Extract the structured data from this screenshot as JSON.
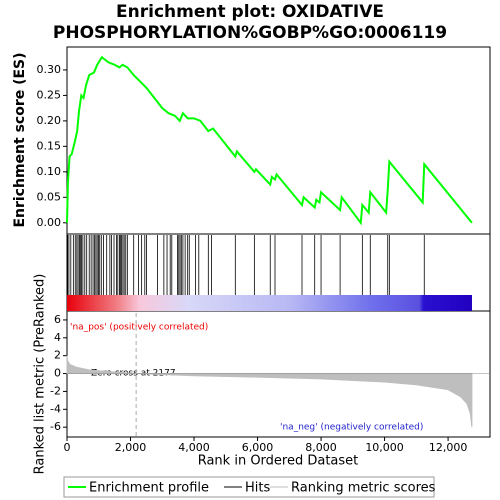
{
  "chart_data": [
    {
      "type": "line",
      "title": [
        "Enrichment plot: OXIDATIVE",
        "PHOSPHORYLATION%GOBP%GO:0006119"
      ],
      "y_label": "Enrichment score (ES)",
      "xlim": [
        0,
        13320
      ],
      "ylim": [
        -0.022,
        0.345
      ],
      "yticks": [
        {
          "value": 0,
          "label": "0.00"
        },
        {
          "value": 0.05,
          "label": "0.05"
        },
        {
          "value": 0.1,
          "label": "0.10"
        },
        {
          "value": 0.15,
          "label": "0.15"
        },
        {
          "value": 0.2,
          "label": "0.20"
        },
        {
          "value": 0.25,
          "label": "0.25"
        },
        {
          "value": 0.3,
          "label": "0.30"
        }
      ],
      "series": [
        {
          "name": "Enrichment profile",
          "color": "#00ff00",
          "x": [
            0,
            30,
            80,
            150,
            250,
            320,
            380,
            450,
            520,
            600,
            700,
            850,
            950,
            1050,
            1100,
            1300,
            1500,
            1650,
            1750,
            1900,
            2100,
            2500,
            3000,
            3200,
            3400,
            3550,
            3650,
            3800,
            4000,
            4200,
            4450,
            4600,
            5300,
            5350,
            5900,
            5950,
            6400,
            6450,
            6550,
            6600,
            7400,
            7450,
            7800,
            7850,
            7950,
            8000,
            8600,
            8650,
            9250,
            9300,
            9500,
            9550,
            10050,
            10100,
            10150,
            11200,
            11250,
            12750
          ],
          "values": [
            0,
            0.08,
            0.13,
            0.135,
            0.16,
            0.18,
            0.22,
            0.25,
            0.245,
            0.27,
            0.29,
            0.295,
            0.31,
            0.32,
            0.325,
            0.315,
            0.31,
            0.305,
            0.31,
            0.305,
            0.29,
            0.265,
            0.225,
            0.215,
            0.21,
            0.2,
            0.215,
            0.205,
            0.205,
            0.2,
            0.18,
            0.185,
            0.13,
            0.14,
            0.1,
            0.105,
            0.075,
            0.09,
            0.085,
            0.095,
            0.035,
            0.05,
            0.03,
            0.045,
            0.04,
            0.06,
            0.025,
            0.05,
            0,
            0.035,
            0.02,
            0.06,
            0.02,
            0.065,
            0.12,
            0.04,
            0.115,
            0
          ]
        }
      ]
    },
    {
      "type": "hits",
      "xlim": [
        0,
        13320
      ],
      "series": [
        {
          "name": "Hits",
          "color": "#000000",
          "values": [
            20,
            60,
            120,
            200,
            260,
            310,
            350,
            390,
            420,
            460,
            500,
            560,
            620,
            700,
            760,
            820,
            870,
            910,
            950,
            990,
            1030,
            1080,
            1150,
            1250,
            1350,
            1400,
            1480,
            1560,
            1600,
            1650,
            1680,
            1720,
            1760,
            1800,
            1850,
            1900,
            2100,
            2250,
            2350,
            2450,
            2500,
            2850,
            3050,
            3150,
            3250,
            3300,
            3480,
            3520,
            3560,
            3600,
            3650,
            3720,
            3800,
            3850,
            4050,
            4150,
            4450,
            4550,
            5300,
            5900,
            6400,
            6550,
            7400,
            7800,
            8000,
            8600,
            9300,
            9550,
            10100,
            10150,
            11250
          ]
        }
      ]
    },
    {
      "type": "area",
      "x_label": "Rank in Ordered Dataset",
      "y_label": "Ranked list metric (PreRanked)",
      "xlim": [
        0,
        13320
      ],
      "ylim": [
        -7.1,
        7.0
      ],
      "xticks": [
        0,
        {
          "value": 2000,
          "label": "2,000"
        },
        {
          "value": 4000,
          "label": "4,000"
        },
        {
          "value": 6000,
          "label": "6,000"
        },
        {
          "value": 8000,
          "label": "8,000"
        },
        {
          "value": 10000,
          "label": "10,000"
        },
        {
          "value": 12000,
          "label": "12,000"
        }
      ],
      "yticks": [
        -6,
        -4,
        -2,
        0,
        2,
        4,
        6
      ],
      "annotations": [
        "'na_pos' (positively correlated)",
        "Zero cross at 2177",
        "'na_neg' (negatively correlated)"
      ],
      "zero_cross": 2177,
      "series": [
        {
          "name": "Ranking metric scores",
          "color": "#bebebe",
          "x": [
            0,
            20,
            100,
            300,
            700,
            1200,
            2177,
            4000,
            6000,
            8000,
            10000,
            11000,
            12000,
            12400,
            12600,
            12700,
            12750
          ],
          "values": [
            2.0,
            1.4,
            1.0,
            0.7,
            0.4,
            0.25,
            0,
            -0.25,
            -0.4,
            -0.6,
            -0.95,
            -1.25,
            -1.8,
            -2.6,
            -3.4,
            -4.5,
            -6
          ]
        }
      ]
    }
  ]
}
